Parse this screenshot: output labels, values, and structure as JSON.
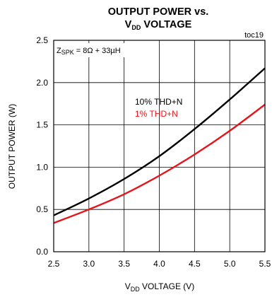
{
  "chart_data": {
    "type": "line",
    "title": {
      "line1": "OUTPUT POWER vs.",
      "line2_main": "V",
      "line2_sub": "DD",
      "line2_rest": " VOLTAGE"
    },
    "xlabel": {
      "main": "V",
      "sub": "DD",
      "rest": " VOLTAGE (V)"
    },
    "ylabel": "OUTPUT POWER (W)",
    "tag": "toc19",
    "condition": {
      "main": "Z",
      "sub": "SPK",
      "rest": " = 8Ω + 33µH"
    },
    "xlim": [
      2.5,
      5.5
    ],
    "ylim": [
      0.0,
      2.5
    ],
    "x_ticks": [
      "2.5",
      "3.0",
      "3.5",
      "4.0",
      "4.5",
      "5.0",
      "5.5"
    ],
    "y_ticks": [
      "0.0",
      "0.5",
      "1.0",
      "1.5",
      "2.0",
      "2.5"
    ],
    "grid": true,
    "series": [
      {
        "name": "10% THD+N",
        "color": "#000000",
        "x": [
          2.5,
          3.0,
          3.5,
          4.0,
          4.5,
          5.0,
          5.5
        ],
        "y": [
          0.43,
          0.63,
          0.86,
          1.13,
          1.45,
          1.8,
          2.17
        ]
      },
      {
        "name": "1% THD+N",
        "color": "#e8141c",
        "x": [
          2.5,
          3.0,
          3.5,
          4.0,
          4.5,
          5.0,
          5.5
        ],
        "y": [
          0.34,
          0.5,
          0.68,
          0.9,
          1.15,
          1.43,
          1.74
        ]
      }
    ]
  }
}
